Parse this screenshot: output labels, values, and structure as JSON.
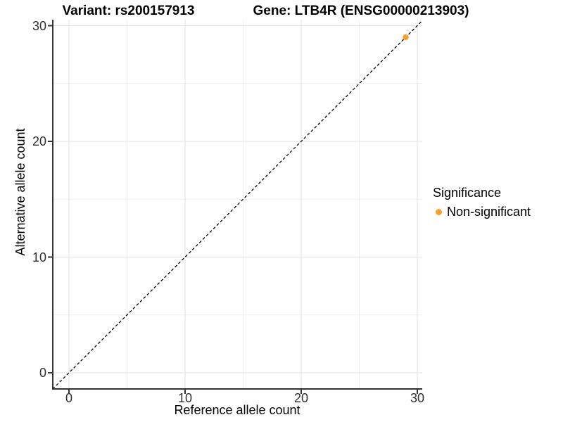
{
  "figure": {
    "title_left": "Variant: rs200157913",
    "title_right": "Gene: LTB4R (ENSG00000213903)"
  },
  "chart_data": {
    "type": "scatter",
    "title": "Variant: rs200157913 — Gene: LTB4R (ENSG00000213903)",
    "xlabel": "Reference allele count",
    "ylabel": "Alternative allele count",
    "xlim": [
      -1.4,
      30.5
    ],
    "ylim": [
      -1.4,
      30.5
    ],
    "x_major_ticks": [
      0,
      10,
      20,
      30
    ],
    "y_major_ticks": [
      0,
      10,
      20,
      30
    ],
    "x_minor_gridlines": [
      5,
      15,
      25
    ],
    "y_minor_gridlines": [
      5,
      15,
      25
    ],
    "grid": "on",
    "identity_line": {
      "equation": "y = x",
      "style": "dashed",
      "color": "#000000"
    },
    "series": [
      {
        "name": "Non-significant",
        "color": "#F8A02E",
        "points": [
          {
            "x": 29,
            "y": 29
          }
        ]
      }
    ],
    "legend": {
      "title": "Significance",
      "position": "right",
      "items": [
        {
          "label": "Non-significant",
          "color": "#F8A02E"
        }
      ]
    },
    "colors": {
      "axis_line": "#333333",
      "tick": "#333333",
      "grid_major": "#e2e2e2",
      "grid_minor": "#efefef"
    }
  }
}
